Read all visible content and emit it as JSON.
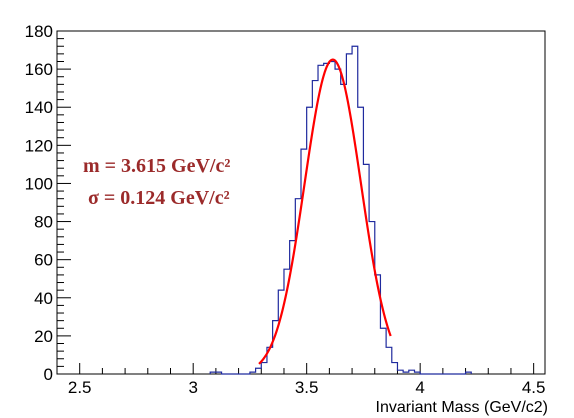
{
  "colors": {
    "histogram": "#1f2a9e",
    "fit": "#ff0000",
    "annotation": "#9b2a2a",
    "axis": "#000000"
  },
  "chart_data": {
    "type": "line",
    "xlabel": "Invariant Mass (GeV/c2)",
    "ylabel": "",
    "xlim": [
      2.4,
      4.55
    ],
    "ylim": [
      0,
      180
    ],
    "x_ticks": [
      2.5,
      3,
      3.5,
      4,
      4.5
    ],
    "x_tick_labels": [
      "2.5",
      "3",
      "3.5",
      "4",
      "4.5"
    ],
    "y_ticks": [
      0,
      20,
      40,
      60,
      80,
      100,
      120,
      140,
      160,
      180
    ],
    "y_tick_labels": [
      "0",
      "20",
      "40",
      "60",
      "80",
      "100",
      "120",
      "140",
      "160",
      "180"
    ],
    "grid": false,
    "legend": "none",
    "series": [
      {
        "kind": "histogram",
        "bin_width": 0.025,
        "bin_edges": [
          3.075,
          3.1,
          3.125,
          3.15,
          3.175,
          3.2,
          3.225,
          3.25,
          3.275,
          3.3,
          3.325,
          3.35,
          3.375,
          3.4,
          3.425,
          3.45,
          3.475,
          3.5,
          3.525,
          3.55,
          3.575,
          3.6,
          3.625,
          3.65,
          3.675,
          3.7,
          3.725,
          3.75,
          3.775,
          3.8,
          3.825,
          3.85,
          3.875,
          3.9,
          3.925,
          3.95,
          3.975,
          4.0,
          4.025,
          4.05,
          4.075,
          4.1,
          4.125,
          4.15,
          4.175,
          4.2,
          4.225
        ],
        "counts": [
          1,
          1,
          0,
          0,
          0,
          0,
          0,
          1,
          3,
          6,
          14,
          28,
          44,
          55,
          70,
          92,
          118,
          140,
          154,
          162,
          163,
          164,
          160,
          152,
          168,
          172,
          140,
          110,
          80,
          52,
          24,
          14,
          6,
          2,
          1,
          2,
          1,
          0,
          0,
          0,
          0,
          0,
          0,
          0,
          0,
          1
        ]
      },
      {
        "kind": "gaussian-fit",
        "mean": 3.615,
        "sigma": 0.124,
        "amplitude": 165,
        "x_range": [
          3.29,
          3.87
        ]
      }
    ],
    "annotations": [
      {
        "text": "m = 3.615 GeV/c²"
      },
      {
        "text": "σ = 0.124 GeV/c²"
      }
    ]
  }
}
